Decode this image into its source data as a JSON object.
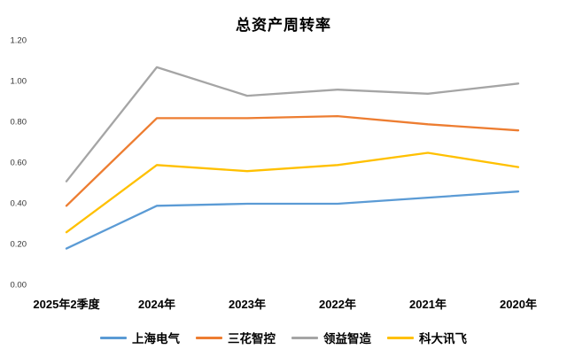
{
  "chart_data": {
    "type": "line",
    "title": "总资产周转率",
    "categories": [
      "2025年2季度",
      "2024年",
      "2023年",
      "2022年",
      "2021年",
      "2020年"
    ],
    "series": [
      {
        "name": "上海电气",
        "color": "#5B9BD5",
        "values": [
          0.18,
          0.39,
          0.4,
          0.4,
          0.43,
          0.46
        ]
      },
      {
        "name": "三花智控",
        "color": "#ED7D31",
        "values": [
          0.39,
          0.82,
          0.82,
          0.83,
          0.79,
          0.76
        ]
      },
      {
        "name": "领益智造",
        "color": "#A5A5A5",
        "values": [
          0.51,
          1.07,
          0.93,
          0.96,
          0.94,
          0.99
        ]
      },
      {
        "name": "科大讯飞",
        "color": "#FFC000",
        "values": [
          0.26,
          0.59,
          0.56,
          0.59,
          0.65,
          0.58
        ]
      }
    ],
    "ylim": [
      0.0,
      1.2
    ],
    "yticks": [
      "0.00",
      "0.20",
      "0.40",
      "0.60",
      "0.80",
      "1.00",
      "1.20"
    ],
    "grid": false,
    "legend_position": "bottom"
  }
}
